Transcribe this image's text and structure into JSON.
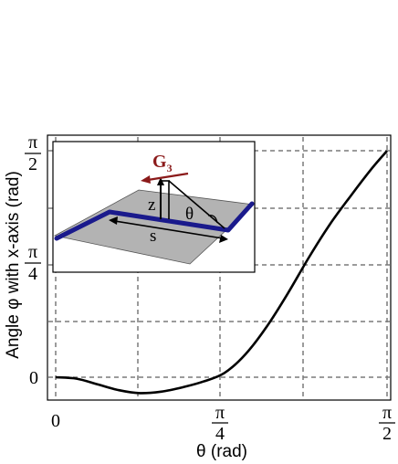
{
  "chart_data": {
    "type": "line",
    "xlabel": "θ (rad)",
    "ylabel": "Angle φ with x-axis (rad)",
    "xlim": [
      0,
      1.5708
    ],
    "ylim": [
      -0.1,
      1.6
    ],
    "grid": true,
    "x_ticks": [
      {
        "value": 0,
        "label": "0"
      },
      {
        "value": 0.7854,
        "label_num": "π",
        "label_den": "4"
      },
      {
        "value": 1.5708,
        "label_num": "π",
        "label_den": "2"
      }
    ],
    "y_ticks": [
      {
        "value": 0,
        "label": "0"
      },
      {
        "value": 0.7854,
        "label_num": "π",
        "label_den": "4"
      },
      {
        "value": 1.5708,
        "label_num": "π",
        "label_den": "2"
      }
    ],
    "grid_x": [
      0,
      0.3927,
      0.7854,
      1.1781,
      1.5708
    ],
    "grid_y": [
      0,
      0.7854,
      1.5708
    ],
    "series": [
      {
        "color": "#000000",
        "x": [
          0,
          0.1,
          0.2,
          0.3,
          0.4,
          0.5,
          0.6,
          0.7,
          0.8,
          0.9,
          1.0,
          1.1,
          1.2,
          1.3,
          1.4,
          1.5,
          1.5708
        ],
        "y": [
          0,
          -0.01,
          -0.05,
          -0.09,
          -0.11,
          -0.1,
          -0.07,
          -0.03,
          0.03,
          0.16,
          0.35,
          0.58,
          0.83,
          1.06,
          1.26,
          1.45,
          1.57
        ]
      }
    ]
  },
  "inset": {
    "force_label": "G",
    "force_subscript": "3",
    "height_label": "z",
    "angle_label": "θ",
    "length_label": "s",
    "force_color": "#8b1a1a",
    "strand_color": "#1a1a8c",
    "plane_color": "#b3b3b3"
  }
}
